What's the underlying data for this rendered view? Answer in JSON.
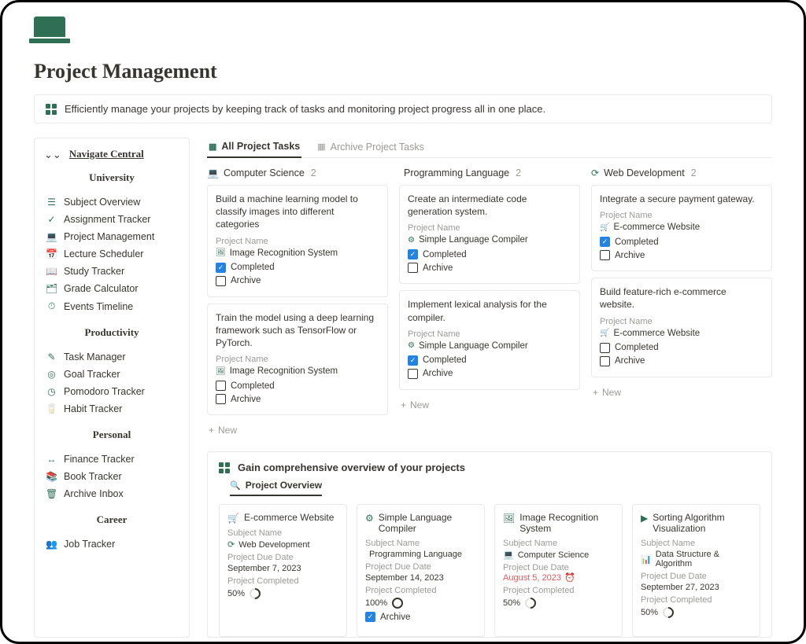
{
  "page": {
    "title": "Project Management",
    "callout": "Efficiently manage your projects by keeping track of tasks and monitoring project progress all in one place."
  },
  "sidebar": {
    "title": "Navigate Central",
    "sections": [
      {
        "heading": "University",
        "items": [
          {
            "icon": "list-icon",
            "glyph": "☰",
            "label": "Subject Overview"
          },
          {
            "icon": "check-icon",
            "glyph": "✓",
            "label": "Assignment Tracker"
          },
          {
            "icon": "laptop-icon",
            "glyph": "💻",
            "label": "Project Management"
          },
          {
            "icon": "calendar-icon",
            "glyph": "📅",
            "label": "Lecture Scheduler"
          },
          {
            "icon": "book-icon",
            "glyph": "📖",
            "label": "Study Tracker"
          },
          {
            "icon": "calculator-icon",
            "glyph": "🗂",
            "label": "Grade Calculator"
          },
          {
            "icon": "timeline-icon",
            "glyph": "⏱",
            "label": "Events Timeline"
          }
        ]
      },
      {
        "heading": "Productivity",
        "items": [
          {
            "icon": "task-icon",
            "glyph": "✎",
            "label": "Task Manager"
          },
          {
            "icon": "target-icon",
            "glyph": "◎",
            "label": "Goal Tracker"
          },
          {
            "icon": "clock-icon",
            "glyph": "◷",
            "label": "Pomodoro Tracker"
          },
          {
            "icon": "cup-icon",
            "glyph": "🥛",
            "label": "Habit Tracker"
          }
        ]
      },
      {
        "heading": "Personal",
        "items": [
          {
            "icon": "money-icon",
            "glyph": "↔",
            "label": "Finance Tracker"
          },
          {
            "icon": "books-icon",
            "glyph": "📚",
            "label": "Book Tracker"
          },
          {
            "icon": "archive-icon",
            "glyph": "🗑",
            "label": "Archive Inbox"
          }
        ]
      },
      {
        "heading": "Career",
        "items": [
          {
            "icon": "people-icon",
            "glyph": "👥",
            "label": "Job Tracker"
          }
        ]
      }
    ]
  },
  "tabs": {
    "active": "All Project Tasks",
    "inactive": "Archive Project Tasks"
  },
  "columns": [
    {
      "icon": "laptop-icon",
      "glyph": "💻",
      "title": "Computer Science",
      "count": "2",
      "cards": [
        {
          "desc": "Build a machine learning model to classify images into different categories",
          "project_label": "Project Name",
          "project_icon": "image-icon",
          "project_glyph": "🖼",
          "project_name": "Image Recognition System",
          "completed": true,
          "completed_label": "Completed",
          "archive": false,
          "archive_label": "Archive"
        },
        {
          "desc": "Train the model using a deep learning framework such as TensorFlow or PyTorch.",
          "project_label": "Project Name",
          "project_icon": "image-icon",
          "project_glyph": "🖼",
          "project_name": "Image Recognition System",
          "completed": false,
          "completed_label": "Completed",
          "archive": false,
          "archive_label": "Archive"
        }
      ],
      "new_label": "New"
    },
    {
      "icon": "code-icon",
      "glyph": "</>",
      "title": "Programming Language",
      "count": "2",
      "cards": [
        {
          "desc": "Create an intermediate code generation system.",
          "project_label": "Project Name",
          "project_icon": "compiler-icon",
          "project_glyph": "⚙",
          "project_name": "Simple Language Compiler",
          "completed": true,
          "completed_label": "Completed",
          "archive": false,
          "archive_label": "Archive"
        },
        {
          "desc": "Implement lexical analysis for the compiler.",
          "project_label": "Project Name",
          "project_icon": "compiler-icon",
          "project_glyph": "⚙",
          "project_name": "Simple Language Compiler",
          "completed": true,
          "completed_label": "Completed",
          "archive": false,
          "archive_label": "Archive"
        }
      ],
      "new_label": "New"
    },
    {
      "icon": "globe-icon",
      "glyph": "⟳",
      "title": "Web Development",
      "count": "2",
      "cards": [
        {
          "desc": "Integrate a secure payment gateway.",
          "project_label": "Project Name",
          "project_icon": "cart-icon",
          "project_glyph": "🛒",
          "project_name": "E-commerce Website",
          "completed": true,
          "completed_label": "Completed",
          "archive": false,
          "archive_label": "Archive"
        },
        {
          "desc": "Build feature-rich e-commerce website.",
          "project_label": "Project Name",
          "project_icon": "cart-icon",
          "project_glyph": "🛒",
          "project_name": "E-commerce Website",
          "completed": false,
          "completed_label": "Completed",
          "archive": false,
          "archive_label": "Archive"
        }
      ],
      "new_label": "New"
    }
  ],
  "overview": {
    "heading": "Gain comprehensive overview of your projects",
    "tab_label": "Project Overview",
    "cards": [
      {
        "icon": "cart-icon",
        "glyph": "🛒",
        "title": "E-commerce Website",
        "subject_label": "Subject Name",
        "subject_glyph": "⟳",
        "subject": "Web Development",
        "due_label": "Project Due Date",
        "due": "September 7, 2023",
        "completed_label": "Project Completed",
        "pct": "50%",
        "ring": "p50"
      },
      {
        "icon": "compiler-icon",
        "glyph": "⚙",
        "title": "Simple Language Compiler",
        "subject_label": "Subject Name",
        "subject_glyph": "</>",
        "subject": "Programming Language",
        "due_label": "Project Due Date",
        "due": "September 14, 2023",
        "completed_label": "Project Completed",
        "pct": "100%",
        "ring": "p100",
        "archive_checked": true,
        "archive_label": "Archive"
      },
      {
        "icon": "image-icon",
        "glyph": "🖼",
        "title": "Image Recognition System",
        "subject_label": "Subject Name",
        "subject_glyph": "💻",
        "subject": "Computer Science",
        "due_label": "Project Due Date",
        "due": "August 5, 2023",
        "due_past": true,
        "completed_label": "Project Completed",
        "pct": "50%",
        "ring": "p50"
      },
      {
        "icon": "sort-icon",
        "glyph": "▶",
        "title": "Sorting Algorithm Visualization",
        "subject_label": "Subject Name",
        "subject_glyph": "📊",
        "subject": "Data Structure & Algorithm",
        "due_label": "Project Due Date",
        "due": "September 27, 2023",
        "completed_label": "Project Completed",
        "pct": "50%",
        "ring": "p50"
      }
    ]
  }
}
